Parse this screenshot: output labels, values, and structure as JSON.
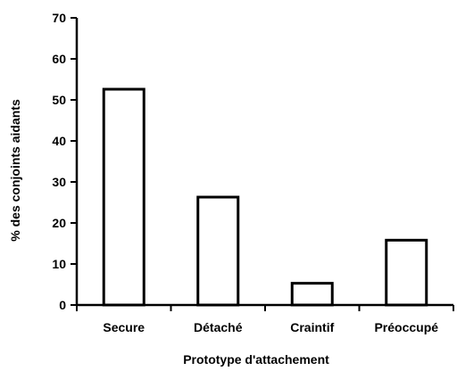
{
  "chart_data": {
    "type": "bar",
    "title": "",
    "xlabel": "Prototype d'attachement",
    "ylabel": "% des conjoints aidants",
    "categories": [
      "Secure",
      "Détaché",
      "Craintif",
      "Préoccupé"
    ],
    "values": [
      52.6,
      26.3,
      5.3,
      15.8
    ],
    "ylim": [
      0,
      70
    ],
    "yticks": [
      0,
      10,
      20,
      30,
      40,
      50,
      60,
      70
    ],
    "ytick_labels": [
      "0",
      "10",
      "20",
      "30",
      "40",
      "50",
      "60",
      "70"
    ],
    "grid": false,
    "legend": "none",
    "colors": {
      "bar_fill": "#ffffff",
      "bar_stroke": "#000000",
      "axis": "#000000"
    }
  }
}
